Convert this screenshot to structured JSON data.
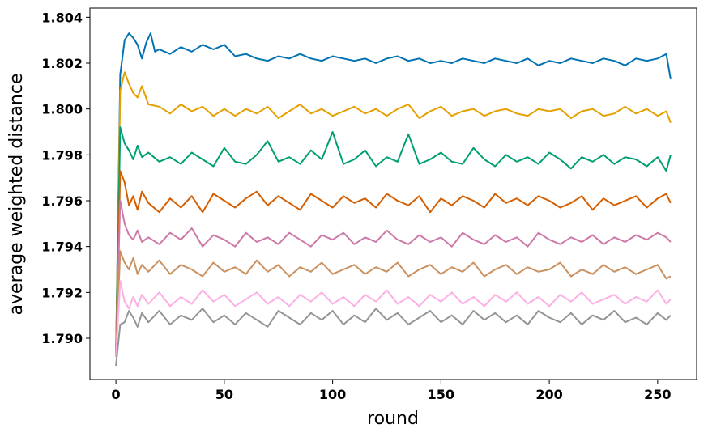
{
  "chart_data": {
    "type": "line",
    "xlabel": "round",
    "ylabel": "average weighted distance",
    "xlim": [
      -12,
      268
    ],
    "ylim": [
      1.7882,
      1.8044
    ],
    "xticks": [
      0,
      50,
      100,
      150,
      200,
      250
    ],
    "yticks": [
      1.79,
      1.792,
      1.794,
      1.796,
      1.798,
      1.8,
      1.802,
      1.804
    ],
    "ytick_labels": [
      "1.790",
      "1.792",
      "1.794",
      "1.796",
      "1.798",
      "1.800",
      "1.802",
      "1.804"
    ],
    "grid": false,
    "legend": "none",
    "series": [
      {
        "color": "#0072b2",
        "x": [
          0,
          2,
          4,
          6,
          8,
          10,
          12,
          14,
          16,
          18,
          20,
          25,
          30,
          35,
          40,
          45,
          50,
          55,
          60,
          65,
          70,
          75,
          80,
          85,
          90,
          95,
          100,
          105,
          110,
          115,
          120,
          125,
          130,
          135,
          140,
          145,
          150,
          155,
          160,
          165,
          170,
          175,
          180,
          185,
          190,
          195,
          200,
          205,
          210,
          215,
          220,
          225,
          230,
          235,
          240,
          245,
          250,
          254,
          256
        ],
        "y": [
          1.7892,
          1.8015,
          1.803,
          1.8033,
          1.8031,
          1.8028,
          1.8022,
          1.8029,
          1.8033,
          1.8025,
          1.8026,
          1.8024,
          1.8027,
          1.8025,
          1.8028,
          1.8026,
          1.8028,
          1.8023,
          1.8024,
          1.8022,
          1.8021,
          1.8023,
          1.8022,
          1.8024,
          1.8022,
          1.8021,
          1.8023,
          1.8022,
          1.8021,
          1.8022,
          1.802,
          1.8022,
          1.8023,
          1.8021,
          1.8022,
          1.802,
          1.8021,
          1.802,
          1.8022,
          1.8021,
          1.802,
          1.8022,
          1.8021,
          1.802,
          1.8022,
          1.8019,
          1.8021,
          1.802,
          1.8022,
          1.8021,
          1.802,
          1.8022,
          1.8021,
          1.8019,
          1.8022,
          1.8021,
          1.8022,
          1.8024,
          1.8013
        ]
      },
      {
        "color": "#e69f00",
        "x": [
          0,
          2,
          4,
          6,
          8,
          10,
          12,
          15,
          20,
          25,
          30,
          35,
          40,
          45,
          50,
          55,
          60,
          65,
          70,
          75,
          80,
          85,
          90,
          95,
          100,
          105,
          110,
          115,
          120,
          125,
          130,
          135,
          140,
          145,
          150,
          155,
          160,
          165,
          170,
          175,
          180,
          185,
          190,
          195,
          200,
          205,
          210,
          215,
          220,
          225,
          230,
          235,
          240,
          245,
          250,
          254,
          256
        ],
        "y": [
          1.7892,
          1.8008,
          1.8016,
          1.8011,
          1.8007,
          1.8005,
          1.801,
          1.8002,
          1.8001,
          1.7998,
          1.8002,
          1.7999,
          1.8001,
          1.7997,
          1.8,
          1.7997,
          1.8,
          1.7998,
          1.8001,
          1.7996,
          1.7999,
          1.8002,
          1.7998,
          1.8,
          1.7997,
          1.7999,
          1.8001,
          1.7998,
          1.8,
          1.7997,
          1.8,
          1.8002,
          1.7996,
          1.7999,
          1.8001,
          1.7997,
          1.7999,
          1.8,
          1.7997,
          1.7999,
          1.8,
          1.7998,
          1.7997,
          1.8,
          1.7999,
          1.8,
          1.7996,
          1.7999,
          1.8,
          1.7997,
          1.7998,
          1.8001,
          1.7998,
          1.8,
          1.7997,
          1.7999,
          1.7994
        ]
      },
      {
        "color": "#009e73",
        "x": [
          0,
          2,
          4,
          6,
          8,
          10,
          12,
          15,
          20,
          25,
          30,
          35,
          40,
          45,
          50,
          55,
          60,
          65,
          70,
          75,
          80,
          85,
          90,
          95,
          100,
          105,
          110,
          115,
          120,
          125,
          130,
          135,
          140,
          145,
          150,
          155,
          160,
          165,
          170,
          175,
          180,
          185,
          190,
          195,
          200,
          205,
          210,
          215,
          220,
          225,
          230,
          235,
          240,
          245,
          250,
          254,
          256
        ],
        "y": [
          1.7892,
          1.7992,
          1.7985,
          1.7982,
          1.7978,
          1.7984,
          1.7979,
          1.7981,
          1.7977,
          1.7979,
          1.7976,
          1.7981,
          1.7978,
          1.7975,
          1.7983,
          1.7977,
          1.7976,
          1.798,
          1.7986,
          1.7977,
          1.7979,
          1.7976,
          1.7982,
          1.7978,
          1.799,
          1.7976,
          1.7978,
          1.7982,
          1.7975,
          1.7979,
          1.7977,
          1.7989,
          1.7976,
          1.7978,
          1.7981,
          1.7977,
          1.7976,
          1.7983,
          1.7978,
          1.7975,
          1.798,
          1.7977,
          1.7979,
          1.7976,
          1.7981,
          1.7978,
          1.7974,
          1.7979,
          1.7977,
          1.798,
          1.7976,
          1.7979,
          1.7978,
          1.7975,
          1.7979,
          1.7973,
          1.798
        ]
      },
      {
        "color": "#d55e00",
        "x": [
          0,
          2,
          4,
          6,
          8,
          10,
          12,
          15,
          20,
          25,
          30,
          35,
          40,
          45,
          50,
          55,
          60,
          65,
          70,
          75,
          80,
          85,
          90,
          95,
          100,
          105,
          110,
          115,
          120,
          125,
          130,
          135,
          140,
          145,
          150,
          155,
          160,
          165,
          170,
          175,
          180,
          185,
          190,
          195,
          200,
          205,
          210,
          215,
          220,
          225,
          230,
          235,
          240,
          245,
          250,
          254,
          256
        ],
        "y": [
          1.7892,
          1.7973,
          1.7968,
          1.7958,
          1.7962,
          1.7956,
          1.7964,
          1.7959,
          1.7955,
          1.7961,
          1.7957,
          1.7962,
          1.7955,
          1.7963,
          1.796,
          1.7957,
          1.7961,
          1.7964,
          1.7958,
          1.7962,
          1.7959,
          1.7956,
          1.7963,
          1.796,
          1.7957,
          1.7962,
          1.7959,
          1.7961,
          1.7957,
          1.7963,
          1.796,
          1.7958,
          1.7962,
          1.7955,
          1.7961,
          1.7958,
          1.7962,
          1.796,
          1.7957,
          1.7963,
          1.7959,
          1.7961,
          1.7958,
          1.7962,
          1.796,
          1.7957,
          1.7959,
          1.7962,
          1.7956,
          1.7961,
          1.7958,
          1.796,
          1.7962,
          1.7957,
          1.7961,
          1.7963,
          1.7959
        ]
      },
      {
        "color": "#cc79a7",
        "x": [
          0,
          2,
          4,
          6,
          8,
          10,
          12,
          15,
          20,
          25,
          30,
          35,
          40,
          45,
          50,
          55,
          60,
          65,
          70,
          75,
          80,
          85,
          90,
          95,
          100,
          105,
          110,
          115,
          120,
          125,
          130,
          135,
          140,
          145,
          150,
          155,
          160,
          165,
          170,
          175,
          180,
          185,
          190,
          195,
          200,
          205,
          210,
          215,
          220,
          225,
          230,
          235,
          240,
          245,
          250,
          254,
          256
        ],
        "y": [
          1.7892,
          1.796,
          1.795,
          1.7945,
          1.7943,
          1.7947,
          1.7942,
          1.7944,
          1.7941,
          1.7946,
          1.7943,
          1.7948,
          1.794,
          1.7945,
          1.7943,
          1.794,
          1.7946,
          1.7942,
          1.7944,
          1.7941,
          1.7946,
          1.7943,
          1.794,
          1.7945,
          1.7943,
          1.7946,
          1.7941,
          1.7944,
          1.7942,
          1.7947,
          1.7943,
          1.7941,
          1.7945,
          1.7942,
          1.7944,
          1.794,
          1.7946,
          1.7943,
          1.7941,
          1.7945,
          1.7942,
          1.7944,
          1.794,
          1.7946,
          1.7943,
          1.7941,
          1.7944,
          1.7942,
          1.7945,
          1.7941,
          1.7944,
          1.7942,
          1.7945,
          1.7943,
          1.7946,
          1.7944,
          1.7942
        ]
      },
      {
        "color": "#ca9161",
        "x": [
          0,
          2,
          4,
          6,
          8,
          10,
          12,
          15,
          20,
          25,
          30,
          35,
          40,
          45,
          50,
          55,
          60,
          65,
          70,
          75,
          80,
          85,
          90,
          95,
          100,
          105,
          110,
          115,
          120,
          125,
          130,
          135,
          140,
          145,
          150,
          155,
          160,
          165,
          170,
          175,
          180,
          185,
          190,
          195,
          200,
          205,
          210,
          215,
          220,
          225,
          230,
          235,
          240,
          245,
          250,
          254,
          256
        ],
        "y": [
          1.7892,
          1.7938,
          1.7933,
          1.793,
          1.7935,
          1.7928,
          1.7932,
          1.7929,
          1.7934,
          1.7928,
          1.7932,
          1.793,
          1.7927,
          1.7933,
          1.7929,
          1.7931,
          1.7928,
          1.7934,
          1.7929,
          1.7932,
          1.7927,
          1.7931,
          1.7929,
          1.7933,
          1.7928,
          1.793,
          1.7932,
          1.7928,
          1.7931,
          1.7929,
          1.7933,
          1.7927,
          1.793,
          1.7932,
          1.7928,
          1.7931,
          1.7929,
          1.7933,
          1.7927,
          1.793,
          1.7932,
          1.7928,
          1.7931,
          1.7929,
          1.793,
          1.7933,
          1.7927,
          1.793,
          1.7928,
          1.7932,
          1.7929,
          1.7931,
          1.7928,
          1.793,
          1.7932,
          1.7926,
          1.7927
        ]
      },
      {
        "color": "#fbafe4",
        "x": [
          0,
          2,
          4,
          6,
          8,
          10,
          12,
          15,
          20,
          25,
          30,
          35,
          40,
          45,
          50,
          55,
          60,
          65,
          70,
          75,
          80,
          85,
          90,
          95,
          100,
          105,
          110,
          115,
          120,
          125,
          130,
          135,
          140,
          145,
          150,
          155,
          160,
          165,
          170,
          175,
          180,
          185,
          190,
          195,
          200,
          205,
          210,
          215,
          220,
          225,
          230,
          235,
          240,
          245,
          250,
          254,
          256
        ],
        "y": [
          1.7892,
          1.7925,
          1.7916,
          1.7913,
          1.7918,
          1.7914,
          1.7919,
          1.7915,
          1.792,
          1.7914,
          1.7918,
          1.7915,
          1.7921,
          1.7916,
          1.7919,
          1.7914,
          1.7917,
          1.792,
          1.7915,
          1.7918,
          1.7914,
          1.7919,
          1.7916,
          1.792,
          1.7915,
          1.7918,
          1.7914,
          1.7919,
          1.7916,
          1.7921,
          1.7915,
          1.7918,
          1.7914,
          1.7919,
          1.7916,
          1.792,
          1.7915,
          1.7918,
          1.7914,
          1.7919,
          1.7916,
          1.792,
          1.7915,
          1.7918,
          1.7914,
          1.7919,
          1.7916,
          1.792,
          1.7915,
          1.7917,
          1.7919,
          1.7915,
          1.7918,
          1.7916,
          1.7921,
          1.7915,
          1.7917
        ]
      },
      {
        "color": "#949494",
        "x": [
          0,
          2,
          4,
          6,
          8,
          10,
          12,
          15,
          20,
          25,
          30,
          35,
          40,
          45,
          50,
          55,
          60,
          65,
          70,
          75,
          80,
          85,
          90,
          95,
          100,
          105,
          110,
          115,
          120,
          125,
          130,
          135,
          140,
          145,
          150,
          155,
          160,
          165,
          170,
          175,
          180,
          185,
          190,
          195,
          200,
          205,
          210,
          215,
          220,
          225,
          230,
          235,
          240,
          245,
          250,
          254,
          256
        ],
        "y": [
          1.7888,
          1.7906,
          1.7907,
          1.7912,
          1.7909,
          1.7905,
          1.7911,
          1.7907,
          1.7912,
          1.7906,
          1.791,
          1.7908,
          1.7913,
          1.7907,
          1.791,
          1.7906,
          1.7911,
          1.7908,
          1.7905,
          1.7912,
          1.7909,
          1.7906,
          1.7911,
          1.7908,
          1.7912,
          1.7906,
          1.791,
          1.7907,
          1.7913,
          1.7908,
          1.7911,
          1.7906,
          1.7909,
          1.7912,
          1.7907,
          1.791,
          1.7906,
          1.7912,
          1.7908,
          1.7911,
          1.7907,
          1.791,
          1.7906,
          1.7912,
          1.7909,
          1.7907,
          1.7911,
          1.7906,
          1.791,
          1.7908,
          1.7912,
          1.7907,
          1.7909,
          1.7906,
          1.7911,
          1.7908,
          1.791
        ]
      }
    ]
  }
}
